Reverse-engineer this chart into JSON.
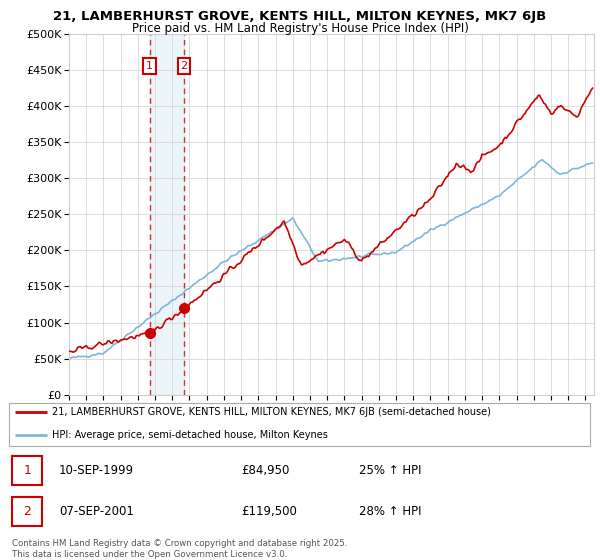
{
  "title_line1": "21, LAMBERHURST GROVE, KENTS HILL, MILTON KEYNES, MK7 6JB",
  "title_line2": "Price paid vs. HM Land Registry's House Price Index (HPI)",
  "legend_line1": "21, LAMBERHURST GROVE, KENTS HILL, MILTON KEYNES, MK7 6JB (semi-detached house)",
  "legend_line2": "HPI: Average price, semi-detached house, Milton Keynes",
  "footer": "Contains HM Land Registry data © Crown copyright and database right 2025.\nThis data is licensed under the Open Government Licence v3.0.",
  "sale1_date": "10-SEP-1999",
  "sale1_price": "£84,950",
  "sale1_hpi": "25% ↑ HPI",
  "sale2_date": "07-SEP-2001",
  "sale2_price": "£119,500",
  "sale2_hpi": "28% ↑ HPI",
  "property_color": "#cc0000",
  "hpi_color": "#7eb6d9",
  "sale1_year": 1999.69,
  "sale1_value": 84950,
  "sale2_year": 2001.69,
  "sale2_value": 119500,
  "ylim": [
    0,
    500000
  ],
  "yticks": [
    0,
    50000,
    100000,
    150000,
    200000,
    250000,
    300000,
    350000,
    400000,
    450000,
    500000
  ],
  "xmin": 1995,
  "xmax": 2025.5
}
